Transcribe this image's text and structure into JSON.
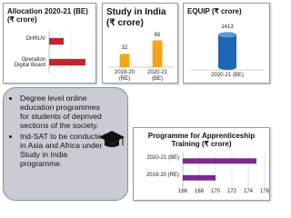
{
  "chart_data": [
    {
      "type": "hbar",
      "title": "Allocation 2020-21 (BE) (₹ crore)",
      "categories": [
        "DHRUV",
        "Operation Digital Board"
      ],
      "values": [
        10,
        25
      ],
      "color": "#c1272d",
      "xlim": [
        0,
        30
      ]
    },
    {
      "type": "bar",
      "title": "Study in India (₹ crore)",
      "categories": [
        "2019-20 (RE)",
        "2020-21 (BE)"
      ],
      "values": [
        32,
        65
      ],
      "color": "#f6a31c",
      "ylim": [
        0,
        75
      ]
    },
    {
      "type": "cylinder",
      "title": "EQUIP (₹ crore)",
      "categories": [
        "2020-21 (BE)"
      ],
      "values": [
        1413
      ],
      "color": "#1f67b4",
      "ylim": [
        0,
        1600
      ]
    },
    {
      "type": "hbar",
      "title": "Programme for Apprenticeship Training (₹ crore)",
      "categories": [
        "2020-21 (BE)",
        "2019-20 (RE)"
      ],
      "values": [
        175,
        170
      ],
      "color": "#7b2a8e",
      "xlim": [
        166,
        176
      ],
      "xticks": [
        166,
        168,
        170,
        172,
        174,
        176
      ],
      "grid": true
    }
  ],
  "info_box": {
    "bullets": [
      "Degree level online education programmes for students of deprived sections of the society.",
      "Ind-SAT to be conducted in Asia and Africa under Study in India programme."
    ]
  }
}
